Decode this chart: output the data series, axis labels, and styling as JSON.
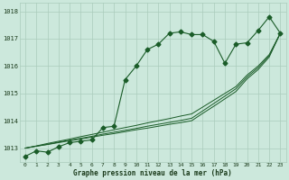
{
  "hours": [
    0,
    1,
    2,
    3,
    4,
    5,
    6,
    7,
    8,
    9,
    10,
    11,
    12,
    13,
    14,
    15,
    16,
    17,
    18,
    19,
    20,
    21,
    22,
    23
  ],
  "main_series": [
    1012.7,
    1012.9,
    1012.85,
    1013.05,
    1013.2,
    1013.25,
    1013.3,
    1013.75,
    1013.8,
    1015.5,
    1016.0,
    1016.6,
    1016.8,
    1017.2,
    1017.25,
    1017.15,
    1017.15,
    1016.9,
    1016.1,
    1016.8,
    1016.85,
    1017.3,
    1017.8,
    1017.2
  ],
  "line2": [
    1013.0,
    1013.07,
    1013.13,
    1013.2,
    1013.27,
    1013.33,
    1013.4,
    1013.47,
    1013.53,
    1013.6,
    1013.67,
    1013.73,
    1013.8,
    1013.87,
    1013.93,
    1014.0,
    1014.27,
    1014.53,
    1014.8,
    1015.07,
    1015.53,
    1015.87,
    1016.33,
    1017.2
  ],
  "line3": [
    1013.0,
    1013.07,
    1013.14,
    1013.22,
    1013.29,
    1013.36,
    1013.43,
    1013.51,
    1013.58,
    1013.65,
    1013.72,
    1013.8,
    1013.87,
    1013.94,
    1014.01,
    1014.09,
    1014.36,
    1014.63,
    1014.9,
    1015.17,
    1015.6,
    1015.94,
    1016.38,
    1017.2
  ],
  "line4": [
    1013.0,
    1013.08,
    1013.17,
    1013.25,
    1013.33,
    1013.42,
    1013.5,
    1013.58,
    1013.67,
    1013.75,
    1013.83,
    1013.92,
    1014.0,
    1014.08,
    1014.17,
    1014.25,
    1014.5,
    1014.75,
    1015.0,
    1015.25,
    1015.67,
    1016.0,
    1016.42,
    1017.2
  ],
  "bg_color": "#cce8dc",
  "grid_color": "#aaccbc",
  "line_color": "#1a5c28",
  "ylabel_values": [
    1013,
    1014,
    1015,
    1016,
    1017,
    1018
  ],
  "ylim": [
    1012.5,
    1018.3
  ],
  "xlim": [
    -0.5,
    23.5
  ],
  "xlabel": "Graphe pression niveau de la mer (hPa)",
  "label_color": "#1a3a1a",
  "marker": "D",
  "markersize": 2.5,
  "linewidth_main": 0.8,
  "linewidth_ref": 0.7,
  "tick_fontsize": 4.5,
  "xlabel_fontsize": 5.5
}
